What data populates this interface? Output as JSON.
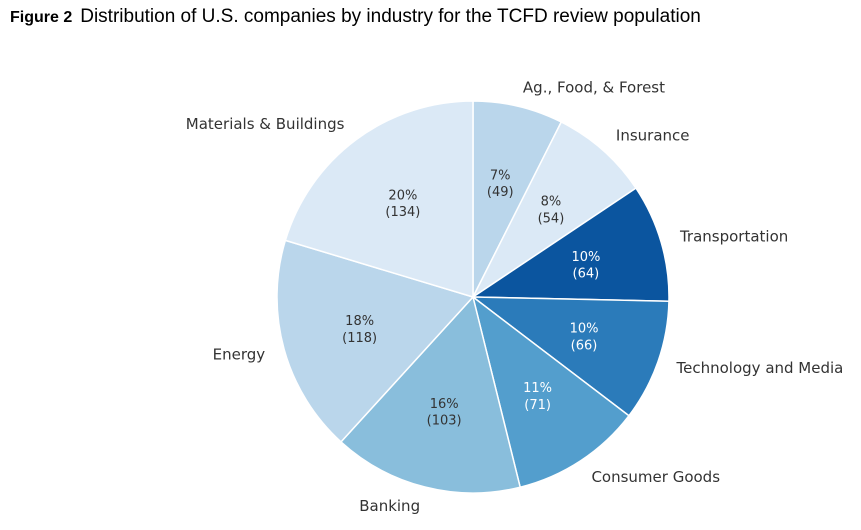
{
  "figure": {
    "number": "Figure 2",
    "title": "Distribution of U.S. companies by industry for the TCFD review population"
  },
  "chart_data": {
    "type": "pie",
    "title": "Distribution of U.S. companies by industry for the TCFD review population",
    "start": "top, clockwise",
    "slices": [
      {
        "label": "Ag., Food, & Forest",
        "percent": "7%",
        "count": "(49)",
        "value": 49,
        "color": "#bad6eb",
        "text_color": "#333333"
      },
      {
        "label": "Insurance",
        "percent": "8%",
        "count": "(54)",
        "value": 54,
        "color": "#dbe9f6",
        "text_color": "#333333"
      },
      {
        "label": "Transportation",
        "percent": "10%",
        "count": "(64)",
        "value": 64,
        "color": "#0b559f",
        "text_color": "#ffffff"
      },
      {
        "label": "Technology and Media",
        "percent": "10%",
        "count": "(66)",
        "value": 66,
        "color": "#2b7bba",
        "text_color": "#ffffff"
      },
      {
        "label": "Consumer Goods",
        "percent": "11%",
        "count": "(71)",
        "value": 71,
        "color": "#539ecd",
        "text_color": "#ffffff"
      },
      {
        "label": "Banking",
        "percent": "16%",
        "count": "(103)",
        "value": 103,
        "color": "#89bedc",
        "text_color": "#333333"
      },
      {
        "label": "Energy",
        "percent": "18%",
        "count": "(118)",
        "value": 118,
        "color": "#bad6eb",
        "text_color": "#333333"
      },
      {
        "label": "Materials & Buildings",
        "percent": "20%",
        "count": "(134)",
        "value": 134,
        "color": "#dbe9f6",
        "text_color": "#333333"
      }
    ]
  }
}
